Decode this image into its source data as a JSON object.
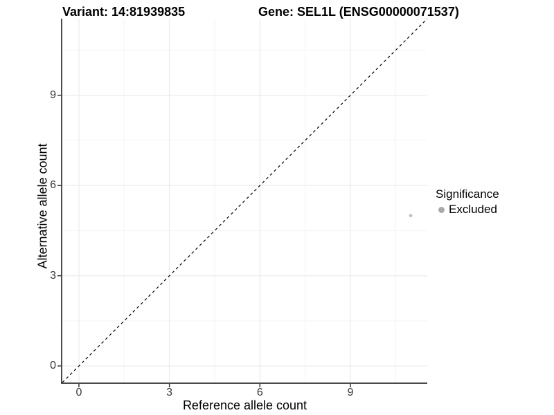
{
  "chart_data": {
    "type": "scatter",
    "titles": {
      "left": "Variant: 14:81939835",
      "right": "Gene: SEL1L (ENSG00000071537)"
    },
    "xlabel": "Reference allele count",
    "ylabel": "Alternative allele count",
    "xlim": [
      -0.55,
      11.55
    ],
    "ylim": [
      -0.55,
      11.55
    ],
    "xticks": [
      0,
      3,
      6,
      9
    ],
    "yticks": [
      0,
      3,
      6,
      9
    ],
    "grid": "major+minor",
    "identity_line": {
      "style": "dashed",
      "slope": 1,
      "intercept": 0,
      "color": "#000000"
    },
    "series": [
      {
        "name": "Excluded",
        "color": "#bfbfbf",
        "points": [
          {
            "x": 11,
            "y": 5
          }
        ]
      }
    ],
    "legend": {
      "title": "Significance",
      "position": "right",
      "items": [
        {
          "label": "Excluded",
          "color": "#a9a9a9"
        }
      ]
    },
    "colors": {
      "grid_major": "#ececec",
      "grid_minor": "#f4f4f4",
      "axis_line": "#4a4a4a",
      "tick_mark": "#333333",
      "background": "#ffffff"
    }
  }
}
